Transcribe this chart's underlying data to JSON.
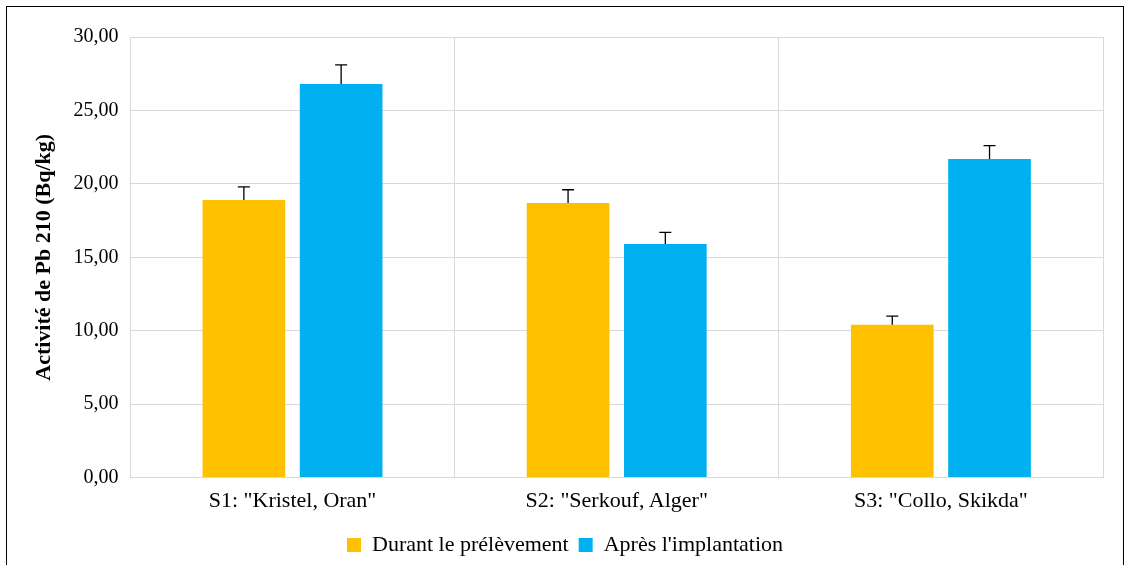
{
  "chart_data": {
    "type": "bar",
    "ylabel": "Activité de Pb 210 (Bq/kg)",
    "categories": [
      "S1: \"Kristel, Oran\"",
      "S2: \"Serkouf, Alger\"",
      "S3: \"Collo, Skikda\""
    ],
    "series": [
      {
        "name": "Durant le prélèvement",
        "color": "#ffc000",
        "values": [
          18.9,
          18.7,
          10.4
        ],
        "errors": [
          [
            18.9,
            19.8
          ],
          [
            18.7,
            19.6
          ],
          [
            10.4,
            11.0
          ]
        ]
      },
      {
        "name": "Après l'implantation",
        "color": "#00b0f0",
        "values": [
          26.8,
          15.9,
          21.7
        ],
        "errors": [
          [
            26.8,
            28.1
          ],
          [
            15.9,
            16.7
          ],
          [
            21.7,
            22.6
          ]
        ]
      }
    ],
    "ylim": [
      0,
      30
    ],
    "yticks": [
      {
        "value": 0,
        "label": "0,00"
      },
      {
        "value": 5,
        "label": "5,00"
      },
      {
        "value": 10,
        "label": "10,00"
      },
      {
        "value": 15,
        "label": "15,00"
      },
      {
        "value": 20,
        "label": "20,00"
      },
      {
        "value": 25,
        "label": "25,00"
      },
      {
        "value": 30,
        "label": "30,00"
      }
    ],
    "grid": true,
    "legend": "bottom"
  }
}
